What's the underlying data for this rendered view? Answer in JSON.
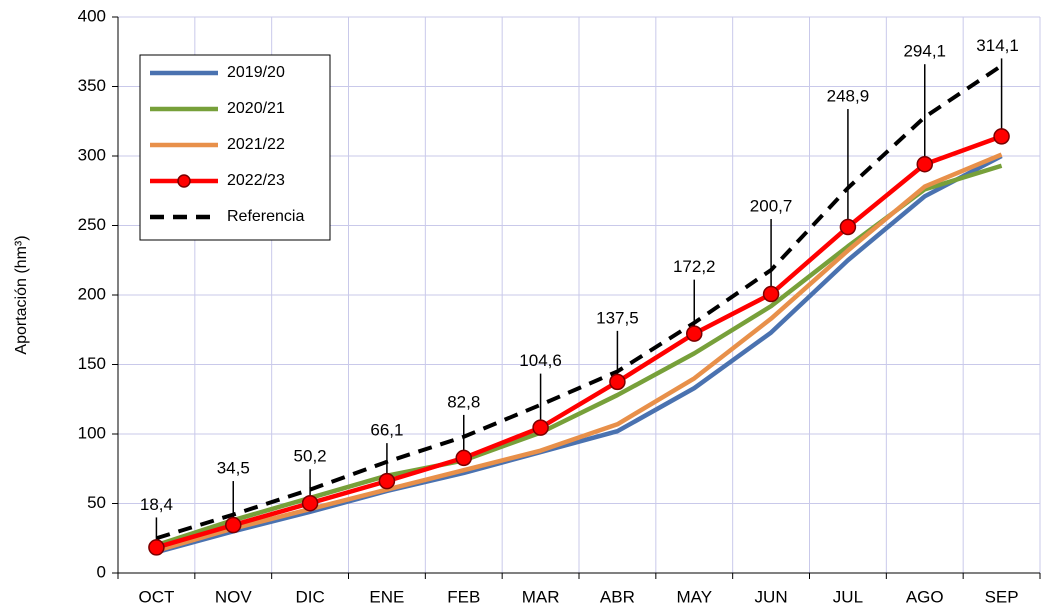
{
  "chart_data": {
    "type": "line",
    "y_label": "Aportación (hm³)",
    "categories": [
      "OCT",
      "NOV",
      "DIC",
      "ENE",
      "FEB",
      "MAR",
      "ABR",
      "MAY",
      "JUN",
      "JUL",
      "AGO",
      "SEP"
    ],
    "ylim": [
      0,
      400
    ],
    "yticks": [
      0,
      50,
      100,
      150,
      200,
      250,
      300,
      350,
      400
    ],
    "grid": true,
    "legend": "top-left",
    "series": [
      {
        "name": "2019/20",
        "color": "#4a72b0",
        "values": [
          15,
          30,
          44,
          59,
          72,
          87,
          102,
          133,
          173,
          225,
          271,
          300
        ]
      },
      {
        "name": "2020/21",
        "color": "#77a03a",
        "values": [
          20,
          38,
          54,
          70,
          81,
          101,
          128,
          158,
          192,
          235,
          276,
          293
        ]
      },
      {
        "name": "2021/22",
        "color": "#e8904a",
        "values": [
          16,
          32,
          46,
          60,
          74,
          88,
          107,
          140,
          183,
          232,
          278,
          301
        ]
      },
      {
        "name": "2022/23",
        "color": "#ff0000",
        "markers": true,
        "values": [
          18.4,
          34.5,
          50.2,
          66.1,
          82.8,
          104.6,
          137.5,
          172.2,
          200.7,
          248.9,
          294.1,
          314.1
        ],
        "value_labels": [
          "18,4",
          "34,5",
          "50,2",
          "66,1",
          "82,8",
          "104,6",
          "137,5",
          "172,2",
          "200,7",
          "248,9",
          "294,1",
          "314,1"
        ]
      },
      {
        "name": "Referencia",
        "color": "#000000",
        "dashed": true,
        "values": [
          25,
          42,
          60,
          80,
          98,
          121,
          145,
          180,
          218,
          277,
          328,
          365
        ]
      }
    ]
  }
}
